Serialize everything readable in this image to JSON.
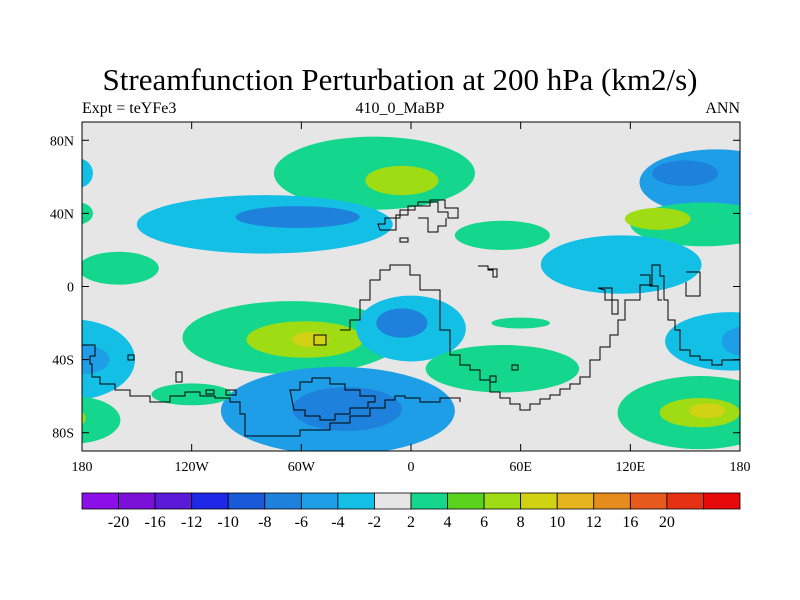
{
  "title": "Streamfunction Perturbation at 200 hPa (km2/s)",
  "subtitle_left": "Expt = teYFe3",
  "subtitle_center": "410_0_MaBP",
  "subtitle_right": "ANN",
  "colors": {
    "background": "#ffffff",
    "plot_fill": "#e6e6e6",
    "coast": "#000000"
  },
  "chart_data": {
    "type": "heatmap",
    "title": "Streamfunction Perturbation at 200 hPa (km2/s)",
    "x_range": [
      -180,
      180
    ],
    "y_range": [
      -90,
      90
    ],
    "x_ticks": [
      {
        "value": -180,
        "label": "180"
      },
      {
        "value": -120,
        "label": "120W"
      },
      {
        "value": -60,
        "label": "60W"
      },
      {
        "value": 0,
        "label": "0"
      },
      {
        "value": 60,
        "label": "60E"
      },
      {
        "value": 120,
        "label": "120E"
      },
      {
        "value": 180,
        "label": "180"
      }
    ],
    "y_ticks": [
      {
        "value": 80,
        "label": "80N"
      },
      {
        "value": 40,
        "label": "40N"
      },
      {
        "value": 0,
        "label": "0"
      },
      {
        "value": -40,
        "label": "40S"
      },
      {
        "value": -80,
        "label": "80S"
      }
    ],
    "colorbar": {
      "colors": [
        "#8b0fe6",
        "#7b10d8",
        "#5a1ad8",
        "#1e28e6",
        "#1a5ad8",
        "#1e82dc",
        "#1e9ee6",
        "#14bfe6",
        "#e6e6e6",
        "#14d68c",
        "#5ad21e",
        "#a0dc14",
        "#d2d214",
        "#e6b41e",
        "#e68c1e",
        "#e65a1e",
        "#e63214",
        "#e60a0a"
      ],
      "labels": [
        "-20",
        "-16",
        "-12",
        "-10",
        "-8",
        "-6",
        "-4",
        "-2",
        "2",
        "4",
        "6",
        "8",
        "10",
        "12",
        "16",
        "20"
      ]
    },
    "anomalies": [
      {
        "lon": 167,
        "lat": 57,
        "rlon": 42,
        "rlat": 18,
        "value": -4.5
      },
      {
        "lon": 150,
        "lat": 62,
        "rlon": 18,
        "rlat": 7,
        "value": -7
      },
      {
        "lon": 160,
        "lat": 34,
        "rlon": 40,
        "rlat": 12,
        "value": 3.2
      },
      {
        "lon": 135,
        "lat": 37,
        "rlon": 18,
        "rlat": 6,
        "value": 6
      },
      {
        "lon": 115,
        "lat": 12,
        "rlon": 44,
        "rlat": 16,
        "value": -3.2
      },
      {
        "lon": -20,
        "lat": 62,
        "rlon": 55,
        "rlat": 20,
        "value": 3.5
      },
      {
        "lon": -5,
        "lat": 58,
        "rlon": 20,
        "rlat": 8,
        "value": 6.2
      },
      {
        "lon": -80,
        "lat": 34,
        "rlon": 70,
        "rlat": 16,
        "value": -3.3
      },
      {
        "lon": -62,
        "lat": 38,
        "rlon": 34,
        "rlat": 6,
        "value": -6.2
      },
      {
        "lon": 50,
        "lat": 28,
        "rlon": 26,
        "rlat": 8,
        "value": 2.6
      },
      {
        "lon": -160,
        "lat": 10,
        "rlon": 22,
        "rlat": 9,
        "value": 2.6
      },
      {
        "lon": -182,
        "lat": 62,
        "rlon": 8,
        "rlat": 8,
        "value": -2.6
      },
      {
        "lon": -182,
        "lat": 40,
        "rlon": 8,
        "rlat": 6,
        "value": 2.6
      },
      {
        "lon": -65,
        "lat": -28,
        "rlon": 60,
        "rlat": 20,
        "value": 3.5
      },
      {
        "lon": -58,
        "lat": -29,
        "rlon": 32,
        "rlat": 10,
        "value": 6.2
      },
      {
        "lon": -55,
        "lat": -29,
        "rlon": 10,
        "rlat": 4,
        "value": 8.2
      },
      {
        "lon": 0,
        "lat": -23,
        "rlon": 30,
        "rlat": 18,
        "value": -3.6
      },
      {
        "lon": -5,
        "lat": -20,
        "rlon": 14,
        "rlat": 8,
        "value": -6.2
      },
      {
        "lon": 50,
        "lat": -45,
        "rlon": 42,
        "rlat": 13,
        "value": 2.6
      },
      {
        "lon": 60,
        "lat": -20,
        "rlon": 16,
        "rlat": 3,
        "value": 2.6
      },
      {
        "lon": -40,
        "lat": -68,
        "rlon": 64,
        "rlat": 24,
        "value": -4.5
      },
      {
        "lon": -35,
        "lat": -67,
        "rlon": 30,
        "rlat": 12,
        "value": -7
      },
      {
        "lon": -185,
        "lat": -40,
        "rlon": 34,
        "rlat": 22,
        "value": -3.6
      },
      {
        "lon": -180,
        "lat": -40,
        "rlon": 15,
        "rlat": 8,
        "value": -6
      },
      {
        "lon": -185,
        "lat": -73,
        "rlon": 26,
        "rlat": 13,
        "value": 3.6
      },
      {
        "lon": -188,
        "lat": -72,
        "rlon": 10,
        "rlat": 6,
        "value": 6
      },
      {
        "lon": -120,
        "lat": -59,
        "rlon": 22,
        "rlat": 6,
        "value": 2.6
      },
      {
        "lon": 158,
        "lat": -69,
        "rlon": 45,
        "rlat": 20,
        "value": 3.8
      },
      {
        "lon": 158,
        "lat": -69,
        "rlon": 22,
        "rlat": 8,
        "value": 6.3
      },
      {
        "lon": 162,
        "lat": -68,
        "rlon": 10,
        "rlat": 4,
        "value": 8.2
      },
      {
        "lon": 175,
        "lat": -30,
        "rlon": 36,
        "rlat": 16,
        "value": -3.3
      },
      {
        "lon": 182,
        "lat": -30,
        "rlon": 12,
        "rlat": 8,
        "value": -6
      }
    ]
  }
}
